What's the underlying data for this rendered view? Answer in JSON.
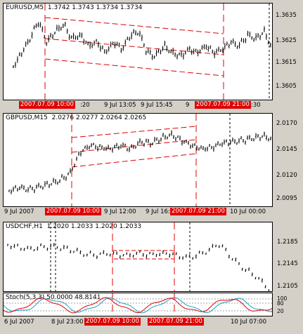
{
  "eurusd": {
    "title": "EURUSD,M5",
    "ohlc": "1.3742 1.3743 1.3734 1.3734",
    "scale": [
      "1.3635",
      "1.3625",
      "1.3615",
      "1.3605"
    ],
    "time_labels": [
      ":20",
      "9 Jul 13:05",
      "9 Jul 15:45",
      "9",
      ":30"
    ],
    "tags": [
      "2007.07.09 10:00",
      "2007.07.09 21:00"
    ]
  },
  "gbpusd": {
    "title": "GBPUSD,M15",
    "ohlc": "2.0276 2.0277 2.0264 2.0265",
    "scale": [
      "2.0170",
      "2.0145",
      "2.0120",
      "2.0095"
    ],
    "time_labels": [
      "9 Jul 2007",
      "9 Jul 12:00",
      "9 Jul 16:00",
      "10 Jul 00:00"
    ],
    "tags": [
      "2007.07.09 10:00",
      "2007.07.09 21:00"
    ]
  },
  "usdchf": {
    "title": "USDCHF,H1",
    "ohlc": "1.2020 1.2033 1.2020 1.2033",
    "scale": [
      "1.2185",
      "1.2145",
      "1.2105"
    ]
  },
  "stoch": {
    "title": "Stoch(5,3,3) 50.0000 48.8141",
    "scale": [
      "100",
      "80",
      "20"
    ],
    "time_labels": [
      "6 Jul 2007",
      "8 Jul 23:00",
      "10 Jul 07:00"
    ],
    "tags": [
      "2007.07.09 10:00",
      "2007.07.09 21:00"
    ]
  },
  "colors": {
    "line": "#e00000",
    "tag_bg": "#e00000",
    "bars": "#000000",
    "stoch_main": "#e00000",
    "stoch_signal": "#1f9fc8"
  }
}
